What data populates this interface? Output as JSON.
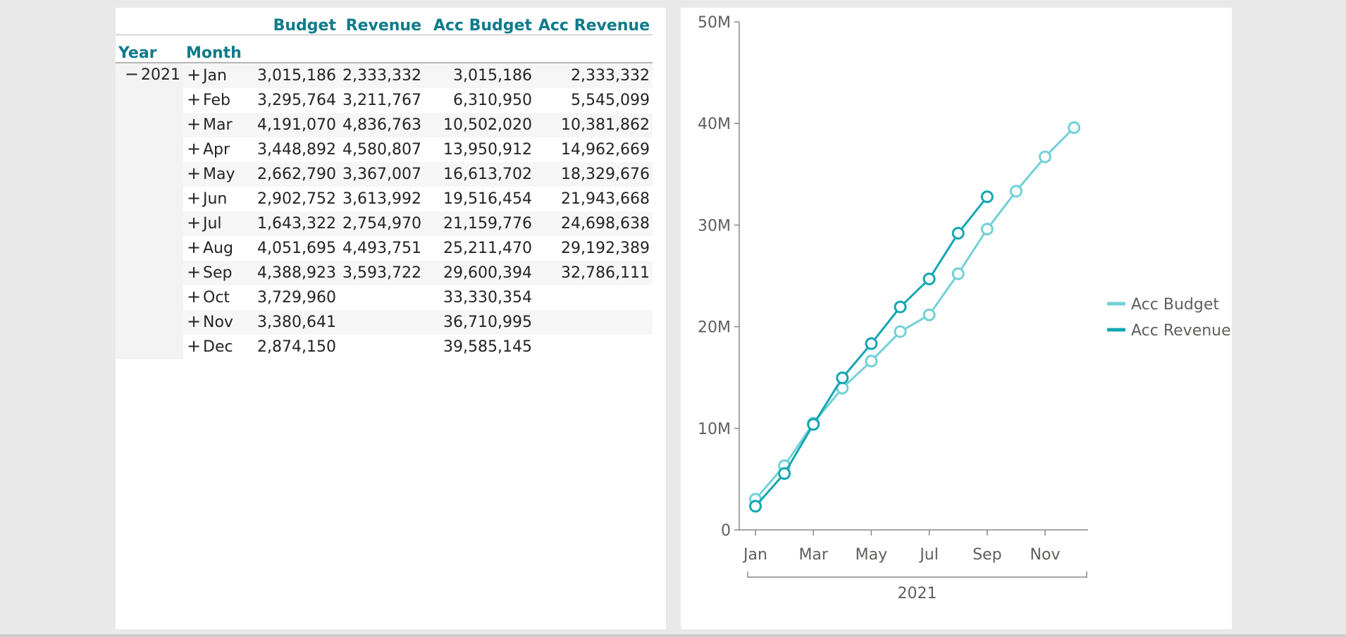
{
  "table": {
    "headers": {
      "year": "Year",
      "month": "Month",
      "budget": "Budget",
      "revenue": "Revenue",
      "acc_budget": "Acc Budget",
      "acc_revenue": "Acc Revenue"
    },
    "year_sign": "−",
    "year_value": "2021",
    "month_sign": "+",
    "rows": [
      {
        "month": "Jan",
        "budget": "3,015,186",
        "revenue": "2,333,332",
        "acc_budget": "3,015,186",
        "acc_revenue": "2,333,332"
      },
      {
        "month": "Feb",
        "budget": "3,295,764",
        "revenue": "3,211,767",
        "acc_budget": "6,310,950",
        "acc_revenue": "5,545,099"
      },
      {
        "month": "Mar",
        "budget": "4,191,070",
        "revenue": "4,836,763",
        "acc_budget": "10,502,020",
        "acc_revenue": "10,381,862"
      },
      {
        "month": "Apr",
        "budget": "3,448,892",
        "revenue": "4,580,807",
        "acc_budget": "13,950,912",
        "acc_revenue": "14,962,669"
      },
      {
        "month": "May",
        "budget": "2,662,790",
        "revenue": "3,367,007",
        "acc_budget": "16,613,702",
        "acc_revenue": "18,329,676"
      },
      {
        "month": "Jun",
        "budget": "2,902,752",
        "revenue": "3,613,992",
        "acc_budget": "19,516,454",
        "acc_revenue": "21,943,668"
      },
      {
        "month": "Jul",
        "budget": "1,643,322",
        "revenue": "2,754,970",
        "acc_budget": "21,159,776",
        "acc_revenue": "24,698,638"
      },
      {
        "month": "Aug",
        "budget": "4,051,695",
        "revenue": "4,493,751",
        "acc_budget": "25,211,470",
        "acc_revenue": "29,192,389"
      },
      {
        "month": "Sep",
        "budget": "4,388,923",
        "revenue": "3,593,722",
        "acc_budget": "29,600,394",
        "acc_revenue": "32,786,111"
      },
      {
        "month": "Oct",
        "budget": "3,729,960",
        "revenue": "",
        "acc_budget": "33,330,354",
        "acc_revenue": ""
      },
      {
        "month": "Nov",
        "budget": "3,380,641",
        "revenue": "",
        "acc_budget": "36,710,995",
        "acc_revenue": ""
      },
      {
        "month": "Dec",
        "budget": "2,874,150",
        "revenue": "",
        "acc_budget": "39,585,145",
        "acc_revenue": ""
      }
    ]
  },
  "chart_data": {
    "type": "line",
    "categories": [
      "Jan",
      "Feb",
      "Mar",
      "Apr",
      "May",
      "Jun",
      "Jul",
      "Aug",
      "Sep",
      "Oct",
      "Nov",
      "Dec"
    ],
    "x_tick_labels": [
      "Jan",
      "Mar",
      "May",
      "Jul",
      "Sep",
      "Nov"
    ],
    "x_group_label": "2021",
    "ylim": [
      0,
      50000000
    ],
    "y_ticks": [
      0,
      10000000,
      20000000,
      30000000,
      40000000,
      50000000
    ],
    "y_tick_labels": [
      "0",
      "10M",
      "20M",
      "30M",
      "40M",
      "50M"
    ],
    "grid": false,
    "legend_position": "right",
    "series": [
      {
        "name": "Acc Budget",
        "color": "#72d1d6",
        "values": [
          3015186,
          6310950,
          10502020,
          13950912,
          16613702,
          19516454,
          21159776,
          25211470,
          29600394,
          33330354,
          36710995,
          39585145
        ]
      },
      {
        "name": "Acc Revenue",
        "color": "#13a7b2",
        "values": [
          2333332,
          5545099,
          10381862,
          14962669,
          18329676,
          21943668,
          24698638,
          29192389,
          32786111,
          null,
          null,
          null
        ]
      }
    ]
  },
  "colors": {
    "header_teal": "#0f7b8a",
    "acc_budget": "#72d1d6",
    "acc_revenue": "#13a7b2"
  }
}
